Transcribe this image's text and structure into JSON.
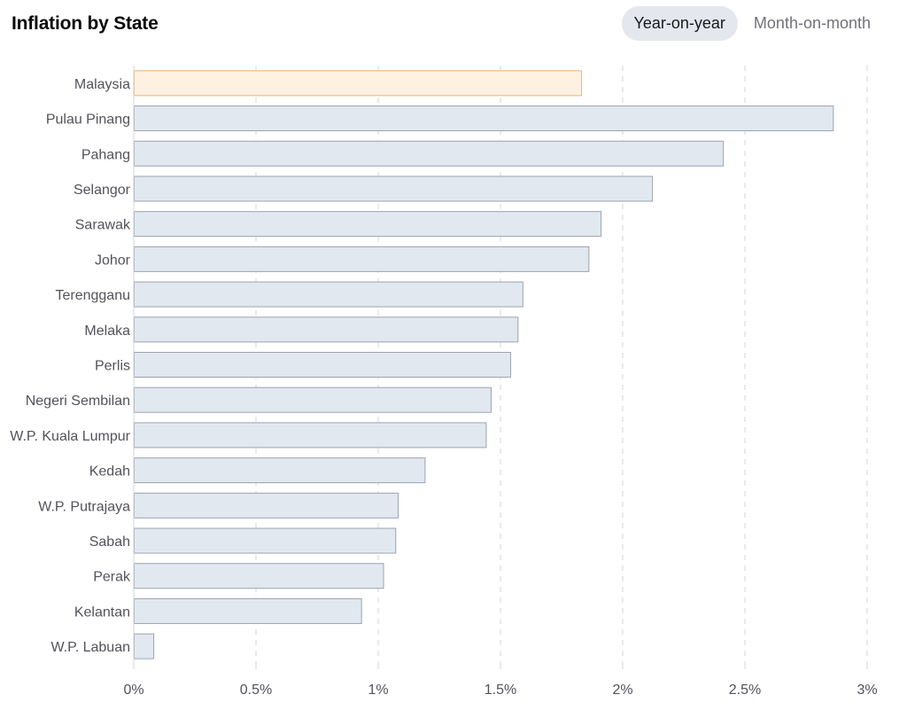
{
  "header": {
    "title": "Inflation by State",
    "tabs": [
      {
        "label": "Year-on-year",
        "active": true
      },
      {
        "label": "Month-on-month",
        "active": false
      }
    ]
  },
  "colors": {
    "bar_fill": "#e2e8f0",
    "bar_stroke": "#9ca3af",
    "highlight_fill": "#fff1e2",
    "highlight_stroke": "#f5b06a",
    "grid": "#d4d4d8",
    "label": "#52525b"
  },
  "chart_data": {
    "type": "bar",
    "orientation": "horizontal",
    "title": "Inflation by State",
    "xlabel": "",
    "ylabel": "",
    "xlim": [
      0,
      3
    ],
    "x_ticks": [
      0,
      0.5,
      1,
      1.5,
      2,
      2.5,
      3
    ],
    "x_tick_labels": [
      "0%",
      "0.5%",
      "1%",
      "1.5%",
      "2%",
      "2.5%",
      "3%"
    ],
    "grid": "vertical dashed",
    "highlight": "Malaysia",
    "categories": [
      "Malaysia",
      "Pulau Pinang",
      "Pahang",
      "Selangor",
      "Sarawak",
      "Johor",
      "Terengganu",
      "Melaka",
      "Perlis",
      "Negeri Sembilan",
      "W.P. Kuala Lumpur",
      "Kedah",
      "W.P. Putrajaya",
      "Sabah",
      "Perak",
      "Kelantan",
      "W.P. Labuan"
    ],
    "values": [
      1.83,
      2.86,
      2.41,
      2.12,
      1.91,
      1.86,
      1.59,
      1.57,
      1.54,
      1.46,
      1.44,
      1.19,
      1.08,
      1.07,
      1.02,
      0.93,
      0.08
    ]
  }
}
